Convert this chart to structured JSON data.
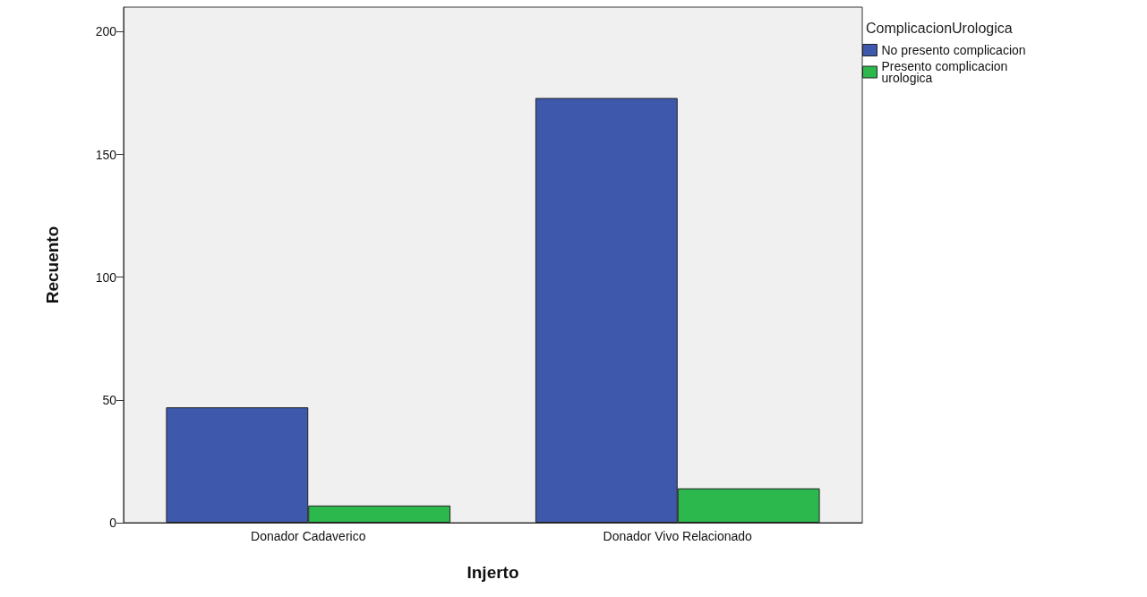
{
  "chart_data": {
    "type": "bar",
    "xlabel": "Injerto",
    "ylabel": "Recuento",
    "legend_title": "ComplicacionUrologica",
    "categories": [
      "Donador Cadaverico",
      "Donador Vivo Relacionado"
    ],
    "series": [
      {
        "name": "No presento complicacion",
        "color": "#3e58ac",
        "values": [
          47,
          173
        ]
      },
      {
        "name": "Presento complicacion urologica",
        "color": "#2db84d",
        "values": [
          7,
          14
        ]
      }
    ],
    "ylim": [
      0,
      210
    ],
    "yticks": [
      0,
      50,
      100,
      150,
      200
    ],
    "grid": false,
    "legend": "top right"
  }
}
